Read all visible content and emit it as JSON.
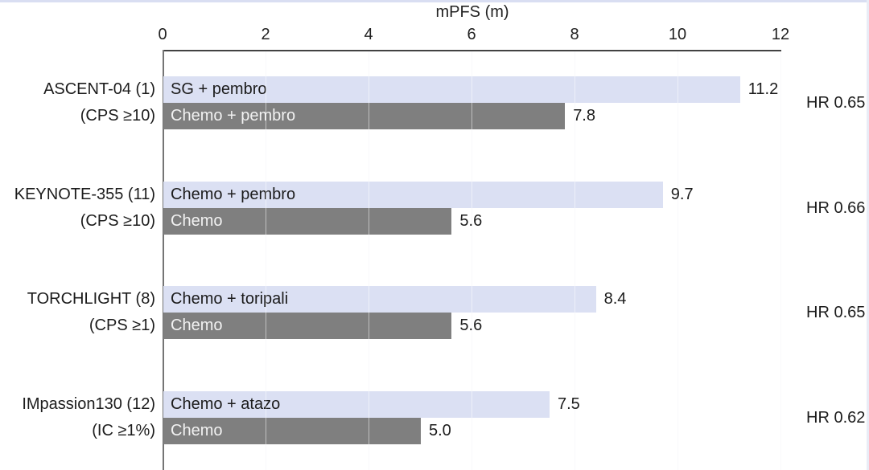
{
  "page": {
    "background": "#ffffff",
    "top_edge_color": "#d9def2",
    "right_edge_color": "#e9ecf6"
  },
  "chart_data": {
    "type": "bar",
    "orientation": "horizontal",
    "title": "mPFS (m)",
    "xlabel": "mPFS (m)",
    "ylabel": "",
    "xlim": [
      0,
      12
    ],
    "x_tick_values": [
      0,
      2,
      4,
      6,
      8,
      10,
      12
    ],
    "x_tick_labels": [
      "0",
      "2",
      "4",
      "6",
      "8",
      "10",
      "12"
    ],
    "grid": "very faint vertical lines at each tick",
    "legend_position": "labels inside bars",
    "colors": {
      "experimental_bar": "#dbe0f3",
      "control_bar": "#7f7f7f",
      "text_on_light_bar": "#1c1c1c",
      "text_on_dark_bar": "#f2f2f2",
      "axis": "#424242",
      "text": "#1c1c1c"
    },
    "groups": [
      {
        "trial": "ASCENT-04 (1)",
        "subgroup": "(CPS ≥10)",
        "hr_label": "HR 0.65",
        "bars": [
          {
            "arm": "SG + pembro",
            "value": 11.2,
            "value_label": "11.2",
            "role": "experimental"
          },
          {
            "arm": "Chemo + pembro",
            "value": 7.8,
            "value_label": "7.8",
            "role": "control"
          }
        ]
      },
      {
        "trial": "KEYNOTE-355 (11)",
        "subgroup": "(CPS ≥10)",
        "hr_label": "HR 0.66",
        "bars": [
          {
            "arm": "Chemo + pembro",
            "value": 9.7,
            "value_label": "9.7",
            "role": "experimental"
          },
          {
            "arm": "Chemo",
            "value": 5.6,
            "value_label": "5.6",
            "role": "control"
          }
        ]
      },
      {
        "trial": "TORCHLIGHT (8)",
        "subgroup": "(CPS ≥1)",
        "hr_label": "HR 0.65",
        "bars": [
          {
            "arm": "Chemo + toripali",
            "value": 8.4,
            "value_label": "8.4",
            "role": "experimental"
          },
          {
            "arm": "Chemo",
            "value": 5.6,
            "value_label": "5.6",
            "role": "control"
          }
        ]
      },
      {
        "trial": "IMpassion130 (12)",
        "subgroup": "(IC ≥1%)",
        "hr_label": "HR 0.62",
        "bars": [
          {
            "arm": "Chemo + atazo",
            "value": 7.5,
            "value_label": "7.5",
            "role": "experimental"
          },
          {
            "arm": "Chemo",
            "value": 5.0,
            "value_label": "5.0",
            "role": "control"
          }
        ]
      }
    ]
  }
}
